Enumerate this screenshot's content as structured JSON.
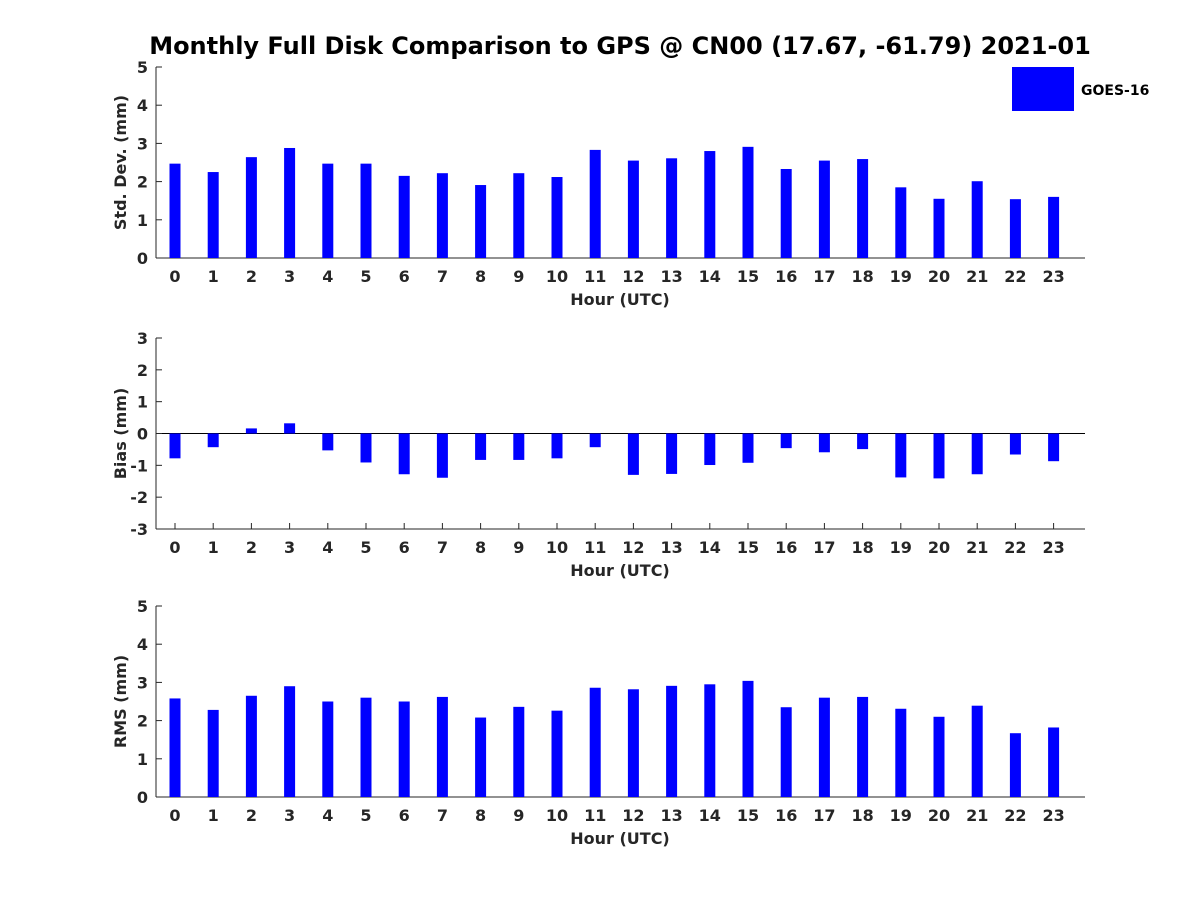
{
  "chart_data": [
    {
      "type": "bar",
      "title": "Monthly Full Disk Comparison to GPS @ CN00 (17.67, -61.79) 2021-01",
      "legend": {
        "entries": [
          "GOES-16"
        ],
        "color": "#0000ff",
        "placement": "top-right"
      },
      "categories": [
        "0",
        "1",
        "2",
        "3",
        "4",
        "5",
        "6",
        "7",
        "8",
        "9",
        "10",
        "11",
        "12",
        "13",
        "14",
        "15",
        "16",
        "17",
        "18",
        "19",
        "20",
        "21",
        "22",
        "23"
      ],
      "series": [
        {
          "name": "GOES-16",
          "color": "#0000ff",
          "values": [
            2.47,
            2.25,
            2.64,
            2.88,
            2.47,
            2.47,
            2.15,
            2.22,
            1.91,
            2.22,
            2.12,
            2.83,
            2.55,
            2.61,
            2.8,
            2.91,
            2.33,
            2.55,
            2.59,
            1.85,
            1.55,
            2.01,
            1.54,
            1.6
          ]
        }
      ],
      "xlabel": "Hour (UTC)",
      "ylabel": "Std. Dev. (mm)",
      "ylim": [
        0,
        5
      ],
      "yticks": [
        "0",
        "1",
        "2",
        "3",
        "4",
        "5"
      ]
    },
    {
      "type": "bar",
      "categories": [
        "0",
        "1",
        "2",
        "3",
        "4",
        "5",
        "6",
        "7",
        "8",
        "9",
        "10",
        "11",
        "12",
        "13",
        "14",
        "15",
        "16",
        "17",
        "18",
        "19",
        "20",
        "21",
        "22",
        "23"
      ],
      "series": [
        {
          "name": "GOES-16",
          "color": "#0000ff",
          "values": [
            -0.78,
            -0.43,
            0.16,
            0.32,
            -0.53,
            -0.91,
            -1.28,
            -1.39,
            -0.83,
            -0.83,
            -0.78,
            -0.43,
            -1.3,
            -1.27,
            -0.99,
            -0.92,
            -0.46,
            -0.59,
            -0.49,
            -1.38,
            -1.41,
            -1.28,
            -0.66,
            -0.87
          ]
        }
      ],
      "xlabel": "Hour (UTC)",
      "ylabel": "Bias (mm)",
      "ylim": [
        -3,
        3
      ],
      "yticks": [
        "-3",
        "-2",
        "-1",
        "0",
        "1",
        "2",
        "3"
      ]
    },
    {
      "type": "bar",
      "categories": [
        "0",
        "1",
        "2",
        "3",
        "4",
        "5",
        "6",
        "7",
        "8",
        "9",
        "10",
        "11",
        "12",
        "13",
        "14",
        "15",
        "16",
        "17",
        "18",
        "19",
        "20",
        "21",
        "22",
        "23"
      ],
      "series": [
        {
          "name": "GOES-16",
          "color": "#0000ff",
          "values": [
            2.58,
            2.28,
            2.65,
            2.9,
            2.5,
            2.6,
            2.5,
            2.62,
            2.08,
            2.36,
            2.26,
            2.86,
            2.82,
            2.91,
            2.95,
            3.04,
            2.35,
            2.6,
            2.62,
            2.31,
            2.1,
            2.39,
            1.67,
            1.82
          ]
        }
      ],
      "xlabel": "Hour (UTC)",
      "ylabel": "RMS (mm)",
      "ylim": [
        0,
        5
      ],
      "yticks": [
        "0",
        "1",
        "2",
        "3",
        "4",
        "5"
      ]
    }
  ]
}
